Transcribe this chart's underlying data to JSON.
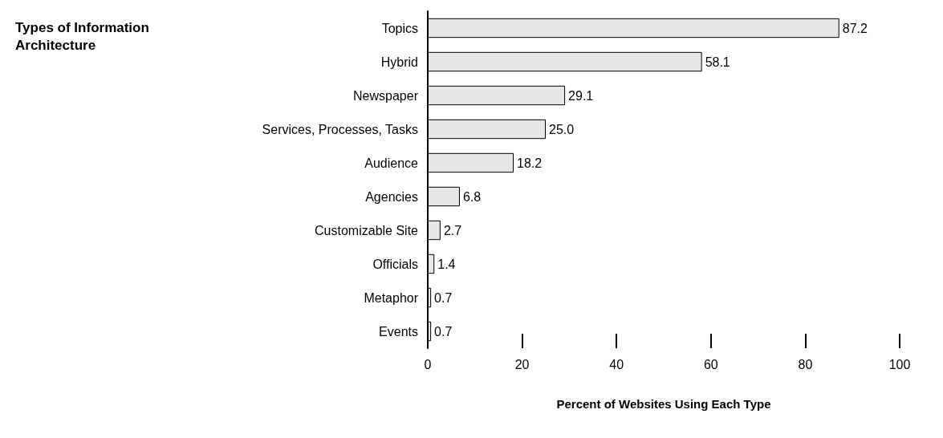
{
  "chart_data": {
    "type": "bar",
    "orientation": "horizontal",
    "title": "Types of Information Architecture",
    "xlabel": "Percent of Websites Using Each Type",
    "categories": [
      "Topics",
      "Hybrid",
      "Newspaper",
      "Services, Processes, Tasks",
      "Audience",
      "Agencies",
      "Customizable Site",
      "Officials",
      "Metaphor",
      "Events"
    ],
    "values": [
      87.2,
      58.1,
      29.1,
      25.0,
      18.2,
      6.8,
      2.7,
      1.4,
      0.7,
      0.7
    ],
    "value_labels": [
      "87.2",
      "58.1",
      "29.1",
      "25.0",
      "18.2",
      "6.8",
      "2.7",
      "1.4",
      "0.7",
      "0.7"
    ],
    "color": "#e6e6e6",
    "xlim": [
      0,
      100
    ],
    "xticks": [
      0,
      20,
      40,
      60,
      80,
      100
    ],
    "grid": false
  }
}
